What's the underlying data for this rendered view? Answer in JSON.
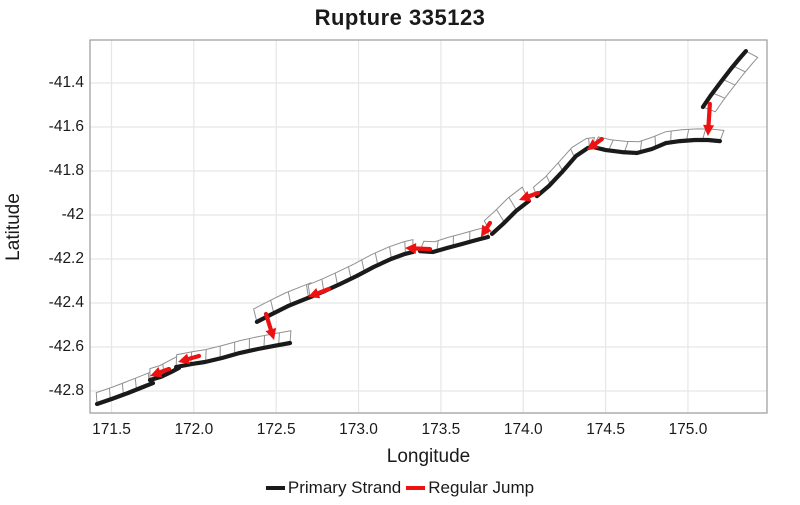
{
  "title": "Rupture 335123",
  "axes": {
    "x_label": "Longitude",
    "y_label": "Latitude",
    "x_ticks": [
      171.5,
      172.0,
      172.5,
      173.0,
      173.5,
      174.0,
      174.5,
      175.0
    ],
    "x_tick_labels": [
      "171.5",
      "172.0",
      "172.5",
      "173.0",
      "173.5",
      "174.0",
      "174.5",
      "175.0"
    ],
    "y_ticks": [
      -41.4,
      -41.6,
      -41.8,
      -42.0,
      -42.2,
      -42.4,
      -42.6,
      -42.8
    ],
    "y_tick_labels": [
      "-41.4",
      "-41.6",
      "-41.8",
      "-42",
      "-42.2",
      "-42.4",
      "-42.6",
      "-42.8"
    ],
    "x_range": [
      171.37,
      175.48
    ],
    "y_range": [
      -42.9,
      -41.2
    ]
  },
  "legend": {
    "items": [
      {
        "label": "Primary Strand",
        "color": "#1a1a1a"
      },
      {
        "label": "Regular Jump",
        "color": "#ee1111"
      }
    ]
  },
  "colors": {
    "strand": "#1a1a1a",
    "jump": "#ee1111",
    "grid": "#e6e6e6",
    "panel_border": "#919191",
    "panel_fill": "#ffffff",
    "plot_border": "#9a9a9a",
    "background": "#ffffff"
  },
  "chart_data": {
    "type": "line",
    "title": "Rupture 335123",
    "xlabel": "Longitude",
    "ylabel": "Latitude",
    "xlim": [
      171.37,
      175.48
    ],
    "ylim": [
      -42.9,
      -41.2
    ],
    "grid": "major-only",
    "legend_position": "bottom",
    "series": [
      {
        "name": "Primary Strand",
        "kind": "fault-strand-polylines",
        "color": "#1a1a1a",
        "strands": [
          [
            [
              171.412,
              -42.859
            ],
            [
              171.503,
              -42.836
            ],
            [
              171.6,
              -42.809
            ],
            [
              171.691,
              -42.782
            ],
            [
              171.752,
              -42.764
            ]
          ],
          [
            [
              171.734,
              -42.75
            ],
            [
              171.8,
              -42.736
            ],
            [
              171.861,
              -42.714
            ],
            [
              171.91,
              -42.695
            ]
          ],
          [
            [
              171.892,
              -42.691
            ],
            [
              171.989,
              -42.677
            ],
            [
              172.068,
              -42.668
            ],
            [
              172.171,
              -42.65
            ],
            [
              172.28,
              -42.627
            ],
            [
              172.389,
              -42.609
            ],
            [
              172.486,
              -42.595
            ],
            [
              172.584,
              -42.582
            ]
          ],
          [
            [
              172.383,
              -42.486
            ],
            [
              172.462,
              -42.455
            ],
            [
              172.571,
              -42.414
            ],
            [
              172.663,
              -42.386
            ],
            [
              172.723,
              -42.368
            ]
          ],
          [
            [
              172.705,
              -42.373
            ],
            [
              172.796,
              -42.345
            ],
            [
              172.887,
              -42.314
            ],
            [
              172.99,
              -42.277
            ],
            [
              173.093,
              -42.236
            ],
            [
              173.197,
              -42.2
            ],
            [
              173.282,
              -42.177
            ],
            [
              173.33,
              -42.168
            ]
          ],
          [
            [
              173.373,
              -42.164
            ],
            [
              173.452,
              -42.168
            ],
            [
              173.537,
              -42.15
            ],
            [
              173.628,
              -42.132
            ],
            [
              173.713,
              -42.114
            ],
            [
              173.786,
              -42.1
            ]
          ],
          [
            [
              173.81,
              -42.086
            ],
            [
              173.877,
              -42.041
            ],
            [
              173.956,
              -41.982
            ],
            [
              174.035,
              -41.936
            ]
          ],
          [
            [
              174.083,
              -41.914
            ],
            [
              174.156,
              -41.868
            ],
            [
              174.235,
              -41.805
            ],
            [
              174.32,
              -41.732
            ],
            [
              174.393,
              -41.695
            ],
            [
              174.423,
              -41.691
            ]
          ],
          [
            [
              174.423,
              -41.691
            ],
            [
              174.502,
              -41.705
            ],
            [
              174.599,
              -41.714
            ],
            [
              174.69,
              -41.718
            ],
            [
              174.781,
              -41.7
            ],
            [
              174.866,
              -41.673
            ],
            [
              174.951,
              -41.664
            ],
            [
              175.042,
              -41.659
            ],
            [
              175.121,
              -41.659
            ],
            [
              175.194,
              -41.664
            ]
          ],
          [
            [
              175.091,
              -41.509
            ],
            [
              175.14,
              -41.455
            ],
            [
              175.2,
              -41.395
            ],
            [
              175.261,
              -41.336
            ],
            [
              175.316,
              -41.286
            ],
            [
              175.352,
              -41.255
            ]
          ]
        ]
      },
      {
        "name": "Regular Jump",
        "kind": "arrows",
        "color": "#ee1111",
        "jumps": [
          {
            "from": [
              171.849,
              -42.7
            ],
            "to": [
              171.734,
              -42.732
            ]
          },
          {
            "from": [
              172.031,
              -42.641
            ],
            "to": [
              171.904,
              -42.668
            ]
          },
          {
            "from": [
              172.438,
              -42.45
            ],
            "to": [
              172.487,
              -42.568
            ]
          },
          {
            "from": [
              172.82,
              -42.336
            ],
            "to": [
              172.693,
              -42.373
            ]
          },
          {
            "from": [
              173.434,
              -42.155
            ],
            "to": [
              173.282,
              -42.15
            ]
          },
          {
            "from": [
              173.798,
              -42.036
            ],
            "to": [
              173.743,
              -42.1
            ]
          },
          {
            "from": [
              174.089,
              -41.9
            ],
            "to": [
              173.974,
              -41.932
            ]
          },
          {
            "from": [
              174.477,
              -41.655
            ],
            "to": [
              174.386,
              -41.705
            ]
          },
          {
            "from": [
              175.133,
              -41.495
            ],
            "to": [
              175.121,
              -41.641
            ]
          }
        ]
      }
    ],
    "panel_style": [
      {
        "side": 1,
        "w": 11,
        "gap": 14
      },
      {
        "side": 1,
        "w": 11,
        "gap": 15
      },
      {
        "side": 1,
        "w": 12,
        "gap": 15
      },
      {
        "side": 1,
        "w": 13,
        "gap": 19
      },
      {
        "side": 1,
        "w": 12,
        "gap": 15
      },
      {
        "side": 1,
        "w": 10,
        "gap": 17
      },
      {
        "side": 1,
        "w": 15,
        "gap": 17
      },
      {
        "side": 1,
        "w": 9,
        "gap": 18
      },
      {
        "side": 1,
        "w": 11,
        "gap": 16
      },
      {
        "side": -1,
        "w": 13,
        "gap": 17
      }
    ]
  }
}
